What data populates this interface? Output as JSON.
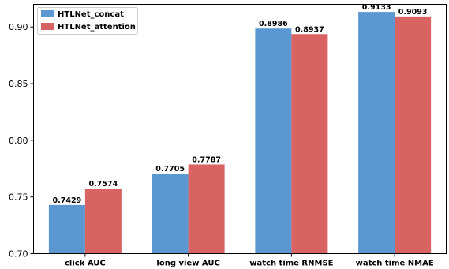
{
  "chart_data": {
    "type": "bar",
    "categories": [
      "click AUC",
      "long view AUC",
      "watch time RNMSE",
      "watch time NMAE"
    ],
    "series": [
      {
        "name": "HTLNet_concat",
        "values": [
          0.7429,
          0.7705,
          0.8986,
          0.9133
        ],
        "labels": [
          "0.7429",
          "0.7705",
          "0.8986",
          "0.9133"
        ],
        "color": "#5b97d1"
      },
      {
        "name": "HTLNet_attention",
        "values": [
          0.7574,
          0.7787,
          0.8937,
          0.9093
        ],
        "labels": [
          "0.7574",
          "0.7787",
          "0.8937",
          "0.9093"
        ],
        "color": "#d96262"
      }
    ],
    "ylim": [
      0.7,
      0.92
    ],
    "yticks": [
      "0.70",
      "0.75",
      "0.80",
      "0.85",
      "0.90"
    ],
    "legend": "top-left",
    "grid": false
  }
}
